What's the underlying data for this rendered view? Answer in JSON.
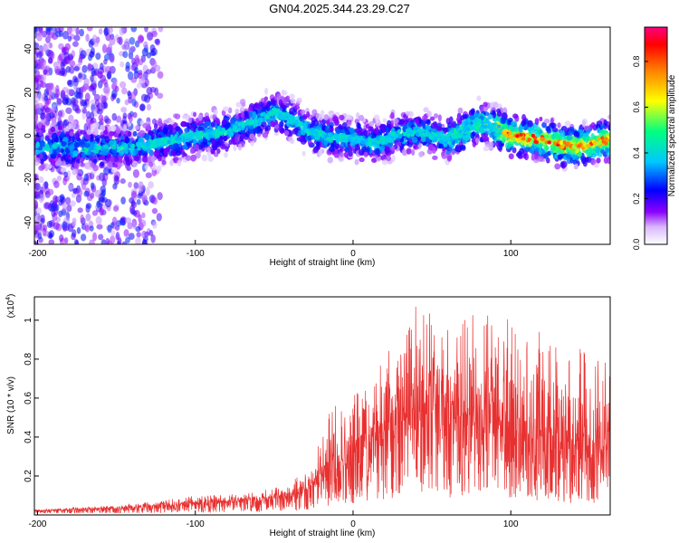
{
  "title": "GN04.2025.344.23.29.C27",
  "chart_data": [
    {
      "type": "heatmap",
      "xlabel": "Height of straight line (km)",
      "ylabel": "Frequency (Hz)",
      "xlim": [
        -202,
        163
      ],
      "ylim": [
        -50,
        50
      ],
      "xticks": [
        -200,
        -100,
        0,
        100
      ],
      "yticks": [
        -40,
        -20,
        0,
        20,
        40
      ],
      "colorbar": {
        "label": "Normalized spectral amplitude",
        "range": [
          0,
          0.95
        ],
        "ticks": [
          "0.0",
          "0.2",
          "0.4",
          "0.6",
          "0.8"
        ],
        "tick_values": [
          0,
          0.2,
          0.4,
          0.6,
          0.8
        ],
        "colormap": [
          "#ffffff",
          "#8c00ff",
          "#0000ff",
          "#00c8ff",
          "#00ff80",
          "#ffff00",
          "#ff8000",
          "#ff0000",
          "#ff0080"
        ]
      },
      "ridge": {
        "x": [
          -190,
          -160,
          -140,
          -120,
          -100,
          -80,
          -65,
          -50,
          -40,
          -30,
          -20,
          -10,
          0,
          10,
          20,
          30,
          40,
          50,
          60,
          70,
          80,
          90,
          100,
          110,
          120,
          130,
          140,
          150,
          160
        ],
        "y": [
          -5,
          -6,
          -5,
          -3,
          0,
          2,
          6,
          11,
          8,
          3,
          0,
          -1,
          -1,
          -3,
          -2,
          1,
          2,
          0,
          -2,
          2,
          6,
          4,
          0,
          -1,
          -2,
          -4,
          -5,
          -4,
          -2
        ]
      },
      "grid": false
    },
    {
      "type": "line",
      "xlabel": "Height of straight line (km)",
      "ylabel": "SNR (10 * v/v)",
      "y_multiplier": "(x10",
      "y_multiplier_exp": "4",
      "y_multiplier_close": ")",
      "xlim": [
        -202,
        163
      ],
      "ylim": [
        0,
        1.12
      ],
      "xticks": [
        -200,
        -100,
        0,
        100
      ],
      "yticks": [
        0.2,
        0.4,
        0.6,
        0.8,
        1.0
      ],
      "series": [
        {
          "color": "#e83030",
          "envelope": {
            "x": [
              -202,
              -150,
              -100,
              -60,
              -40,
              -25,
              -15,
              0,
              10,
              20,
              30,
              40,
              50,
              60,
              70,
              80,
              90,
              100,
              110,
              120,
              130,
              140,
              150,
              163
            ],
            "mean": [
              0.02,
              0.03,
              0.05,
              0.07,
              0.09,
              0.14,
              0.22,
              0.28,
              0.33,
              0.36,
              0.4,
              0.42,
              0.45,
              0.45,
              0.43,
              0.43,
              0.45,
              0.4,
              0.36,
              0.38,
              0.33,
              0.3,
              0.3,
              0.33
            ],
            "peak": [
              0.03,
              0.05,
              0.1,
              0.12,
              0.16,
              0.28,
              0.55,
              0.6,
              0.78,
              0.85,
              0.95,
              1.1,
              1.1,
              1.05,
              1.0,
              1.05,
              1.1,
              1.0,
              0.9,
              0.95,
              0.85,
              0.85,
              0.9,
              0.8
            ]
          }
        }
      ],
      "grid": false
    }
  ]
}
